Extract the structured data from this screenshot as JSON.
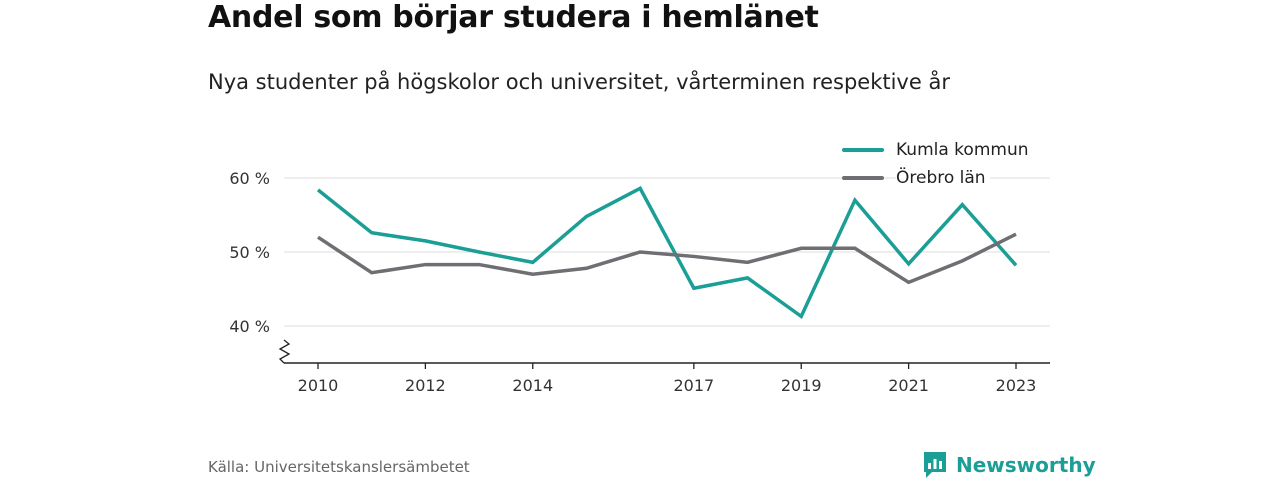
{
  "header": {
    "title": "Andel som börjar studera i hemlänet",
    "subtitle": "Nya studenter på högskolor och universitet, vårterminen respektive år"
  },
  "footer": {
    "source": "Källa: Universitetskanslersämbetet",
    "brand": "Newsworthy"
  },
  "colors": {
    "kumla": "#1a9e96",
    "orebro": "#6e6e73",
    "axis": "#222222",
    "grid": "#dddddd",
    "brand": "#1a9e96"
  },
  "chart_data": {
    "type": "line",
    "title": "Andel som börjar studera i hemlänet",
    "subtitle": "Nya studenter på högskolor och universitet, vårterminen respektive år",
    "x": [
      2010,
      2011,
      2012,
      2013,
      2014,
      2015,
      2016,
      2017,
      2018,
      2019,
      2020,
      2021,
      2022,
      2023
    ],
    "x_ticks": [
      2010,
      2012,
      2014,
      2017,
      2019,
      2021,
      2023
    ],
    "y_ticks": [
      40,
      50,
      60
    ],
    "y_tick_labels": [
      "40 %",
      "50 %",
      "60 %"
    ],
    "ylim": [
      35,
      61
    ],
    "y_axis_break": true,
    "grid": "horizontal",
    "legend_position": "top-right",
    "series": [
      {
        "name": "Kumla kommun",
        "color": "#1a9e96",
        "values": [
          58.4,
          52.6,
          51.5,
          50.0,
          48.6,
          54.8,
          58.6,
          45.1,
          46.5,
          41.3,
          57.0,
          48.4,
          56.4,
          48.2
        ]
      },
      {
        "name": "Örebro län",
        "color": "#6e6e73",
        "values": [
          52.0,
          47.2,
          48.3,
          48.3,
          47.0,
          47.8,
          50.0,
          49.4,
          48.6,
          50.5,
          50.5,
          45.9,
          48.8,
          52.4
        ]
      }
    ]
  }
}
